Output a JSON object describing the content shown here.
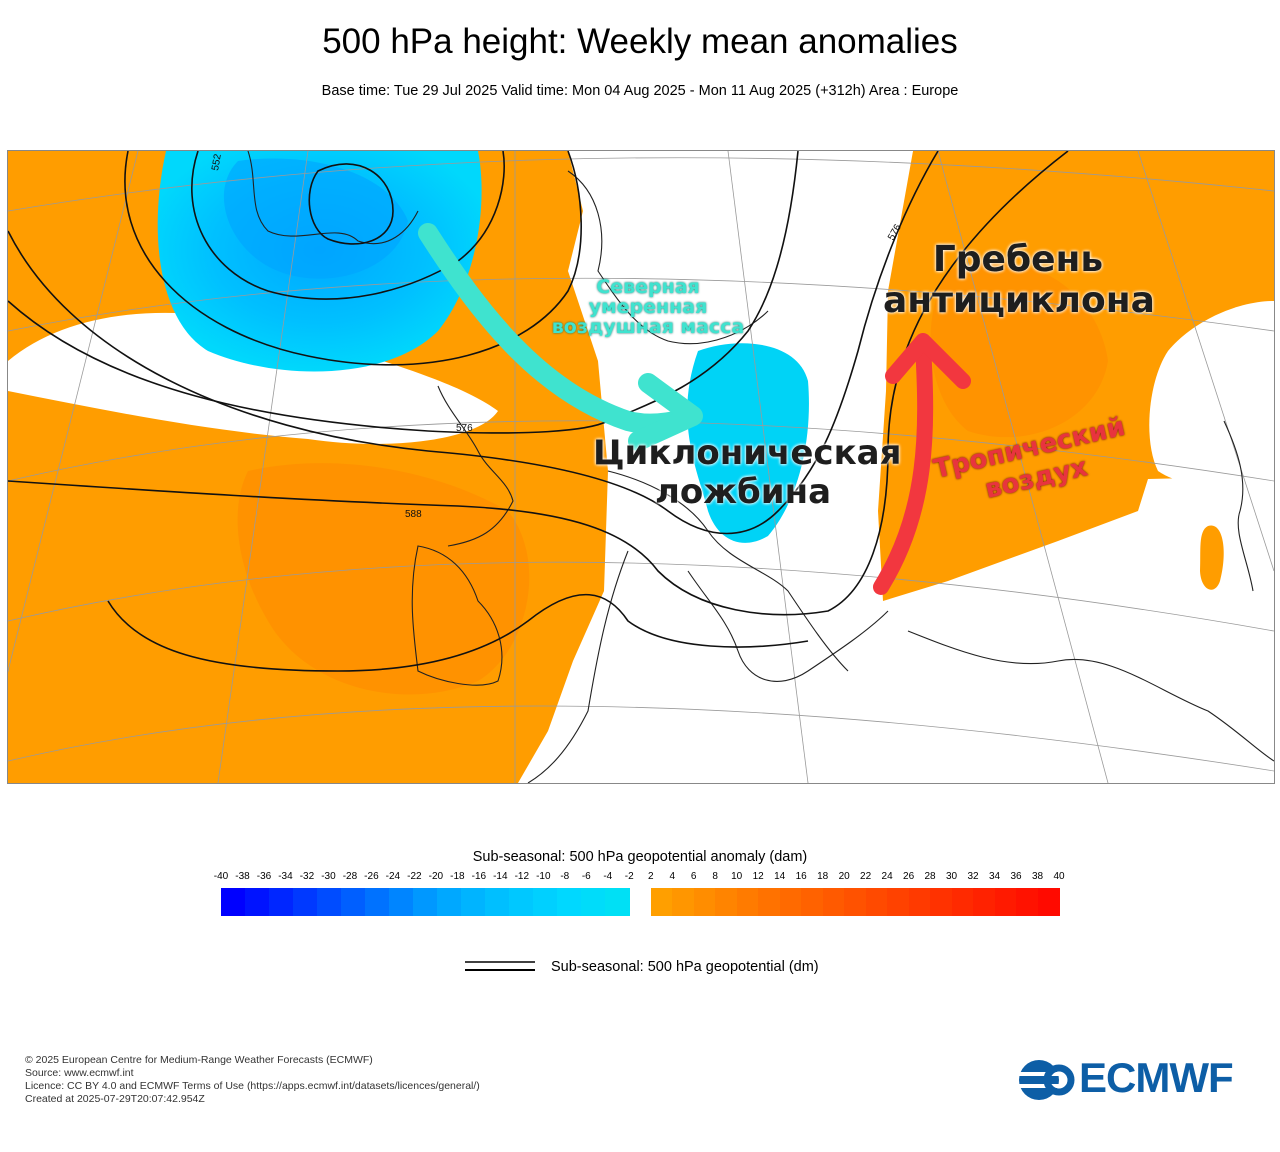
{
  "header": {
    "title": "500 hPa height: Weekly mean anomalies",
    "subtitle": "Base time: Tue 29 Jul 2025 Valid time: Mon 04 Aug 2025 - Mon 11 Aug 2025 (+312h) Area : Europe"
  },
  "map": {
    "area": "Europe",
    "contour_labels": [
      "552",
      "576",
      "588",
      "576"
    ],
    "annotations": {
      "cold_air": "Северная умеренная воздушная масса",
      "trough": "Циклоническая ложбина",
      "ridge": "Гребень антициклона",
      "tropical": "Тропический воздух"
    },
    "colors": {
      "cold_arrow": "#3fe3cf",
      "warm_arrow": "#f2373f",
      "positive_anomaly": "#ff9a00",
      "negative_anomaly": "#00bfff"
    }
  },
  "colorbar": {
    "title": "Sub-seasonal: 500 hPa geopotential anomaly (dam)",
    "ticks": [
      "-40",
      "-38",
      "-36",
      "-34",
      "-32",
      "-30",
      "-28",
      "-26",
      "-24",
      "-22",
      "-20",
      "-18",
      "-16",
      "-14",
      "-12",
      "-10",
      "-8",
      "-6",
      "-4",
      "-2",
      "2",
      "4",
      "6",
      "8",
      "10",
      "12",
      "14",
      "16",
      "18",
      "20",
      "22",
      "24",
      "26",
      "28",
      "30",
      "32",
      "34",
      "36",
      "38",
      "40"
    ],
    "negative_colors": [
      "#0000ff",
      "#0013ff",
      "#0026ff",
      "#0039ff",
      "#004cff",
      "#005fff",
      "#0072ff",
      "#0085ff",
      "#0098ff",
      "#00a8ff",
      "#00b4ff",
      "#00bfff",
      "#00c8ff",
      "#00d0ff",
      "#00d8ff",
      "#00dcfa",
      "#00e0f5"
    ],
    "positive_colors": [
      "#ff9f00",
      "#ff9600",
      "#ff8d00",
      "#ff8400",
      "#ff7b00",
      "#ff7200",
      "#ff6a00",
      "#ff6200",
      "#ff5a00",
      "#ff5200",
      "#ff4a00",
      "#ff4200",
      "#ff3a00",
      "#ff3200",
      "#ff2a00",
      "#ff2200",
      "#ff1a00",
      "#ff1200",
      "#ff0a00"
    ]
  },
  "legend": {
    "contour_label": "Sub-seasonal: 500 hPa geopotential (dm)"
  },
  "footer": {
    "line1": "© 2025 European Centre for Medium-Range Weather Forecasts (ECMWF)",
    "line2": "Source: www.ecmwf.int",
    "line3": "Licence: CC BY 4.0 and ECMWF Terms of Use (https://apps.ecmwf.int/datasets/licences/general/)",
    "line4": "Created at 2025-07-29T20:07:42.954Z"
  },
  "logo": {
    "text": "ECMWF",
    "color": "#0d5ea6"
  }
}
